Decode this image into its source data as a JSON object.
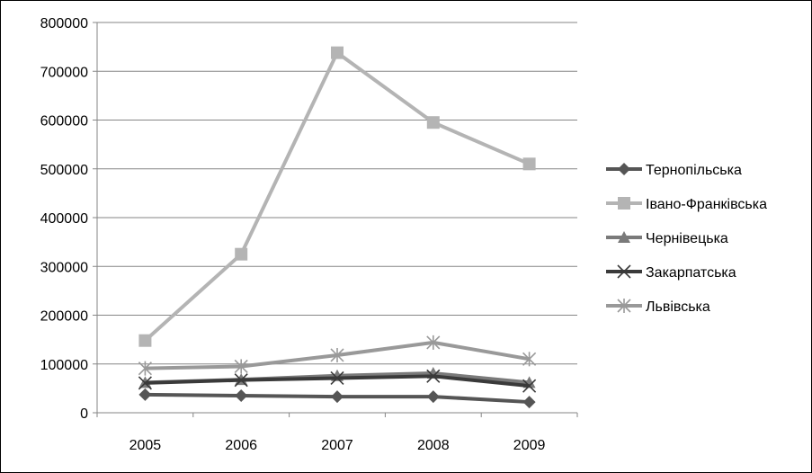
{
  "chart_data": {
    "type": "line",
    "title": "",
    "xlabel": "",
    "ylabel": "",
    "x": [
      "2005",
      "2006",
      "2007",
      "2008",
      "2009"
    ],
    "ylim": [
      0,
      800000
    ],
    "yticks": [
      0,
      100000,
      200000,
      300000,
      400000,
      500000,
      600000,
      700000,
      800000
    ],
    "ytick_labels": [
      "0",
      "100000",
      "200000",
      "300000",
      "400000",
      "500000",
      "600000",
      "700000",
      "800000"
    ],
    "grid": "horizontal",
    "legend_position": "right",
    "series": [
      {
        "name": "Тернопільська",
        "values": [
          37000,
          35000,
          33000,
          33000,
          22000
        ],
        "color": "#555555",
        "marker": "diamond"
      },
      {
        "name": "Івано-Франківська",
        "values": [
          148000,
          325000,
          738000,
          595000,
          510000
        ],
        "color": "#b4b4b4",
        "marker": "square"
      },
      {
        "name": "Чернівецька",
        "values": [
          62000,
          68000,
          76000,
          81000,
          62000
        ],
        "color": "#7a7a7a",
        "marker": "triangle"
      },
      {
        "name": "Закарпатська",
        "values": [
          61000,
          67000,
          71000,
          75000,
          55000
        ],
        "color": "#3a3a3a",
        "marker": "x"
      },
      {
        "name": "Львівська",
        "values": [
          91000,
          95000,
          118000,
          144000,
          110000
        ],
        "color": "#999999",
        "marker": "star"
      }
    ]
  }
}
